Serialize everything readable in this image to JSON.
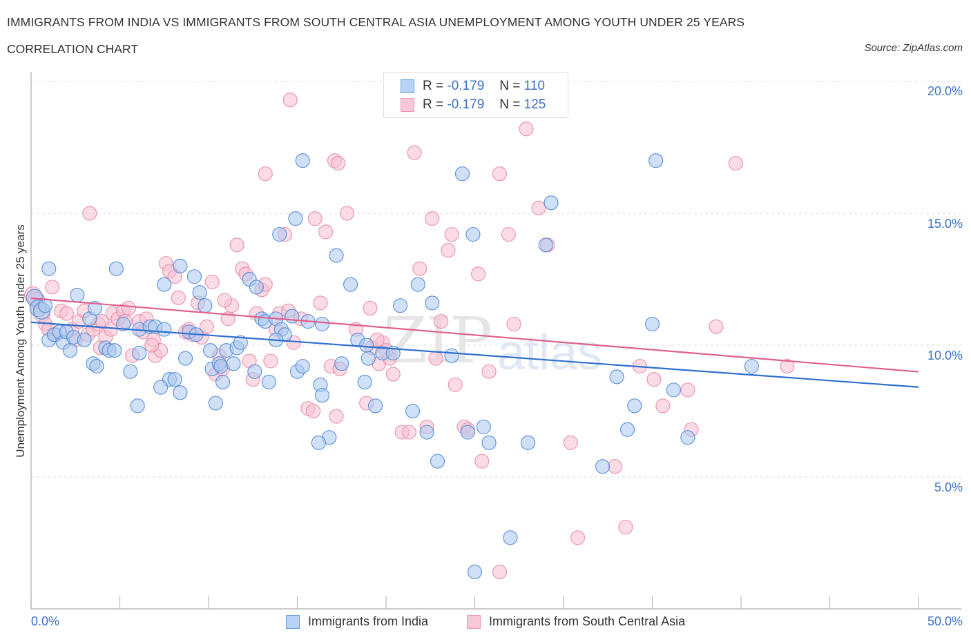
{
  "header": {
    "title": "IMMIGRANTS FROM INDIA VS IMMIGRANTS FROM SOUTH CENTRAL ASIA UNEMPLOYMENT AMONG YOUTH UNDER 25 YEARS",
    "subtitle": "CORRELATION CHART",
    "source": "Source: ZipAtlas.com"
  },
  "legend_box": {
    "rows": [
      {
        "r_label": "R = ",
        "r_value": "-0.179",
        "n_label": "N = ",
        "n_value": "110"
      },
      {
        "r_label": "R = ",
        "r_value": "-0.179",
        "n_label": "N = ",
        "n_value": "125"
      }
    ]
  },
  "watermark": {
    "zip": "ZIP",
    "atlas": "atlas"
  },
  "colors": {
    "india_fill": "#a9c8f0",
    "india_stroke": "#4a86d8",
    "india_line": "#2f6fd0",
    "sca_fill": "#f7bfd0",
    "sca_stroke": "#e887a6",
    "sca_line": "#e0608a",
    "tick_text": "#3b72c8"
  },
  "chart_data": {
    "type": "scatter",
    "title": "IMMIGRANTS FROM INDIA VS IMMIGRANTS FROM SOUTH CENTRAL ASIA UNEMPLOYMENT AMONG YOUTH UNDER 25 YEARS",
    "subtitle": "CORRELATION CHART",
    "xlabel": "",
    "ylabel": "Unemployment Among Youth under 25 years",
    "xlim": [
      0,
      50
    ],
    "ylim": [
      0,
      20
    ],
    "x_tick_labels": [
      "0.0%",
      "50.0%"
    ],
    "y_ticks": [
      5,
      10,
      15,
      20
    ],
    "y_tick_labels": [
      "5.0%",
      "10.0%",
      "15.0%",
      "20.0%"
    ],
    "grid": "horizontal-dashed",
    "legend": "bottom-center",
    "series": [
      {
        "name": "Immigrants from India",
        "R": -0.179,
        "N": 110,
        "trend": {
          "x": [
            0,
            50
          ],
          "y": [
            10.87,
            8.41
          ]
        },
        "points": [
          [
            0.2,
            11.8
          ],
          [
            0.4,
            11.4
          ],
          [
            0.6,
            11.3
          ],
          [
            0.8,
            11.5
          ],
          [
            1.0,
            10.2
          ],
          [
            1.3,
            10.4
          ],
          [
            1.6,
            10.5
          ],
          [
            1.8,
            10.1
          ],
          [
            2.0,
            10.5
          ],
          [
            2.2,
            9.8
          ],
          [
            1.0,
            12.9
          ],
          [
            2.6,
            11.9
          ],
          [
            2.4,
            10.3
          ],
          [
            3.0,
            10.2
          ],
          [
            3.3,
            11.0
          ],
          [
            3.5,
            9.3
          ],
          [
            3.6,
            11.4
          ],
          [
            4.2,
            9.9
          ],
          [
            4.4,
            9.8
          ],
          [
            4.7,
            9.8
          ],
          [
            3.7,
            9.2
          ],
          [
            4.8,
            12.9
          ],
          [
            5.2,
            10.8
          ],
          [
            5.6,
            9.0
          ],
          [
            6.1,
            9.7
          ],
          [
            6.1,
            10.6
          ],
          [
            6.7,
            10.7
          ],
          [
            7.0,
            10.7
          ],
          [
            7.5,
            10.6
          ],
          [
            7.5,
            12.3
          ],
          [
            7.8,
            8.7
          ],
          [
            8.1,
            8.7
          ],
          [
            8.4,
            8.2
          ],
          [
            8.4,
            13.0
          ],
          [
            8.9,
            10.5
          ],
          [
            8.7,
            9.5
          ],
          [
            9.2,
            12.6
          ],
          [
            9.5,
            12.0
          ],
          [
            9.3,
            10.4
          ],
          [
            9.8,
            11.5
          ],
          [
            6.0,
            7.7
          ],
          [
            7.3,
            8.4
          ],
          [
            10.1,
            9.8
          ],
          [
            10.2,
            9.1
          ],
          [
            10.6,
            9.3
          ],
          [
            10.7,
            9.2
          ],
          [
            10.8,
            8.6
          ],
          [
            11.0,
            9.8
          ],
          [
            10.4,
            7.8
          ],
          [
            11.4,
            9.3
          ],
          [
            11.6,
            9.9
          ],
          [
            11.8,
            10.1
          ],
          [
            12.3,
            12.5
          ],
          [
            12.7,
            12.2
          ],
          [
            12.6,
            9.0
          ],
          [
            13.0,
            11.0
          ],
          [
            13.2,
            10.9
          ],
          [
            13.4,
            8.6
          ],
          [
            13.8,
            11.0
          ],
          [
            14.1,
            10.6
          ],
          [
            14.0,
            14.2
          ],
          [
            14.3,
            10.4
          ],
          [
            14.7,
            11.1
          ],
          [
            15.0,
            9.0
          ],
          [
            15.3,
            9.2
          ],
          [
            15.6,
            10.9
          ],
          [
            13.8,
            10.2
          ],
          [
            16.4,
            10.8
          ],
          [
            14.9,
            14.8
          ],
          [
            15.3,
            17.0
          ],
          [
            16.3,
            8.5
          ],
          [
            16.4,
            8.1
          ],
          [
            16.8,
            6.5
          ],
          [
            16.2,
            6.3
          ],
          [
            17.2,
            13.4
          ],
          [
            17.5,
            9.3
          ],
          [
            18.0,
            12.3
          ],
          [
            18.4,
            10.2
          ],
          [
            18.8,
            8.6
          ],
          [
            19.0,
            9.5
          ],
          [
            18.9,
            10.0
          ],
          [
            19.4,
            7.7
          ],
          [
            19.8,
            9.7
          ],
          [
            20.4,
            9.7
          ],
          [
            20.8,
            11.5
          ],
          [
            21.5,
            7.5
          ],
          [
            21.8,
            12.3
          ],
          [
            22.3,
            6.7
          ],
          [
            22.6,
            11.6
          ],
          [
            22.9,
            5.6
          ],
          [
            23.7,
            9.6
          ],
          [
            24.3,
            16.5
          ],
          [
            24.9,
            14.2
          ],
          [
            25.5,
            6.9
          ],
          [
            24.6,
            6.7
          ],
          [
            25.0,
            1.4
          ],
          [
            25.8,
            6.3
          ],
          [
            27.0,
            2.7
          ],
          [
            28.0,
            6.3
          ],
          [
            29.3,
            15.4
          ],
          [
            29.0,
            13.8
          ],
          [
            32.2,
            5.4
          ],
          [
            33.0,
            8.8
          ],
          [
            33.6,
            6.8
          ],
          [
            34.0,
            7.7
          ],
          [
            35.2,
            17.0
          ],
          [
            35.0,
            10.8
          ],
          [
            36.2,
            8.3
          ],
          [
            37.0,
            6.5
          ],
          [
            40.6,
            9.2
          ]
        ]
      },
      {
        "name": "Immigrants from South Central Asia",
        "R": -0.179,
        "N": 125,
        "trend": {
          "x": [
            0,
            50
          ],
          "y": [
            11.78,
            8.99
          ]
        },
        "points": [
          [
            0.1,
            11.9
          ],
          [
            0.3,
            11.7
          ],
          [
            0.6,
            11.2
          ],
          [
            0.8,
            10.8
          ],
          [
            1.0,
            10.6
          ],
          [
            1.2,
            12.2
          ],
          [
            1.4,
            10.4
          ],
          [
            1.7,
            11.3
          ],
          [
            2.0,
            11.2
          ],
          [
            2.3,
            10.6
          ],
          [
            2.5,
            10.2
          ],
          [
            2.7,
            10.9
          ],
          [
            3.0,
            11.3
          ],
          [
            3.2,
            10.4
          ],
          [
            3.3,
            15.0
          ],
          [
            3.5,
            10.6
          ],
          [
            3.8,
            10.8
          ],
          [
            4.0,
            10.9
          ],
          [
            4.2,
            10.3
          ],
          [
            4.5,
            10.6
          ],
          [
            4.6,
            11.2
          ],
          [
            4.9,
            11.0
          ],
          [
            5.2,
            11.3
          ],
          [
            5.3,
            10.9
          ],
          [
            5.5,
            11.4
          ],
          [
            5.7,
            9.6
          ],
          [
            6.1,
            10.9
          ],
          [
            6.3,
            10.5
          ],
          [
            6.5,
            11.0
          ],
          [
            6.9,
            10.2
          ],
          [
            7.0,
            9.6
          ],
          [
            7.3,
            9.8
          ],
          [
            7.6,
            13.1
          ],
          [
            7.8,
            12.8
          ],
          [
            8.1,
            12.6
          ],
          [
            8.3,
            11.8
          ],
          [
            8.7,
            10.5
          ],
          [
            9.1,
            10.4
          ],
          [
            9.4,
            11.6
          ],
          [
            9.6,
            10.3
          ],
          [
            9.9,
            10.7
          ],
          [
            10.2,
            12.4
          ],
          [
            10.4,
            8.9
          ],
          [
            10.6,
            9.6
          ],
          [
            10.8,
            9.1
          ],
          [
            11.1,
            11.0
          ],
          [
            11.3,
            11.5
          ],
          [
            11.6,
            13.8
          ],
          [
            11.9,
            12.9
          ],
          [
            12.1,
            12.7
          ],
          [
            12.3,
            9.4
          ],
          [
            12.5,
            8.7
          ],
          [
            12.7,
            11.2
          ],
          [
            13.0,
            12.1
          ],
          [
            13.2,
            12.3
          ],
          [
            13.5,
            9.4
          ],
          [
            13.2,
            16.5
          ],
          [
            13.8,
            10.6
          ],
          [
            14.0,
            11.2
          ],
          [
            14.3,
            14.2
          ],
          [
            14.5,
            11.3
          ],
          [
            14.8,
            10.1
          ],
          [
            14.6,
            19.3
          ],
          [
            15.2,
            11.0
          ],
          [
            15.6,
            7.6
          ],
          [
            15.9,
            7.5
          ],
          [
            16.0,
            14.8
          ],
          [
            16.3,
            11.6
          ],
          [
            16.6,
            14.3
          ],
          [
            16.9,
            9.2
          ],
          [
            17.1,
            17.0
          ],
          [
            17.3,
            16.9
          ],
          [
            17.4,
            9.1
          ],
          [
            17.2,
            7.3
          ],
          [
            17.8,
            15.0
          ],
          [
            18.3,
            10.6
          ],
          [
            18.9,
            7.8
          ],
          [
            19.1,
            11.4
          ],
          [
            19.2,
            9.9
          ],
          [
            19.6,
            9.3
          ],
          [
            19.8,
            10.1
          ],
          [
            20.2,
            9.5
          ],
          [
            20.4,
            8.9
          ],
          [
            20.9,
            6.7
          ],
          [
            21.3,
            6.7
          ],
          [
            21.6,
            17.3
          ],
          [
            21.9,
            12.9
          ],
          [
            22.3,
            6.9
          ],
          [
            22.6,
            14.8
          ],
          [
            22.8,
            9.5
          ],
          [
            23.1,
            10.9
          ],
          [
            23.5,
            13.6
          ],
          [
            23.7,
            14.2
          ],
          [
            23.9,
            8.5
          ],
          [
            24.4,
            6.9
          ],
          [
            24.6,
            6.8
          ],
          [
            25.2,
            12.7
          ],
          [
            25.4,
            5.6
          ],
          [
            25.8,
            9.0
          ],
          [
            26.4,
            16.5
          ],
          [
            26.9,
            14.2
          ],
          [
            26.4,
            1.4
          ],
          [
            27.9,
            18.2
          ],
          [
            28.6,
            15.2
          ],
          [
            29.1,
            13.8
          ],
          [
            30.4,
            6.3
          ],
          [
            30.8,
            2.7
          ],
          [
            32.9,
            5.4
          ],
          [
            33.5,
            3.1
          ],
          [
            34.3,
            9.2
          ],
          [
            35.1,
            8.7
          ],
          [
            35.6,
            7.7
          ],
          [
            37.0,
            8.3
          ],
          [
            37.2,
            6.8
          ],
          [
            38.6,
            10.7
          ],
          [
            39.7,
            16.9
          ],
          [
            42.6,
            9.2
          ],
          [
            20.0,
            9.8
          ],
          [
            27.2,
            10.8
          ],
          [
            19.5,
            10.2
          ],
          [
            8.9,
            10.6
          ],
          [
            10.9,
            11.7
          ],
          [
            6.8,
            10.0
          ],
          [
            3.9,
            9.9
          ],
          [
            22.0,
            20.0
          ]
        ]
      }
    ]
  },
  "bottom_legend": {
    "items": [
      {
        "label": "Immigrants from India"
      },
      {
        "label": "Immigrants from South Central Asia"
      }
    ]
  }
}
